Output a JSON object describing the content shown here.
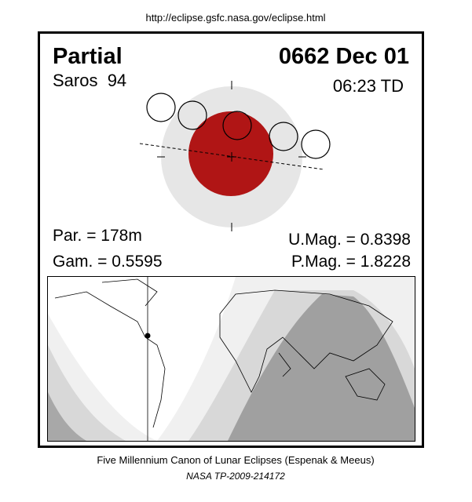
{
  "url": "http://eclipse.gsfc.nasa.gov/eclipse.html",
  "eclipse": {
    "type": "Partial",
    "date": "0662 Dec 01",
    "saros": "Saros  94",
    "time": "06:23 TD",
    "par": "Par. = 178m",
    "gam": "Gam. = 0.5595",
    "umag": "U.Mag. = 0.8398",
    "pmag": "P.Mag. = 1.8228"
  },
  "footer": {
    "line1": "Five Millennium Canon of Lunar Eclipses (Espenak & Meeus)",
    "line2": "NASA TP-2009-214172"
  }
}
